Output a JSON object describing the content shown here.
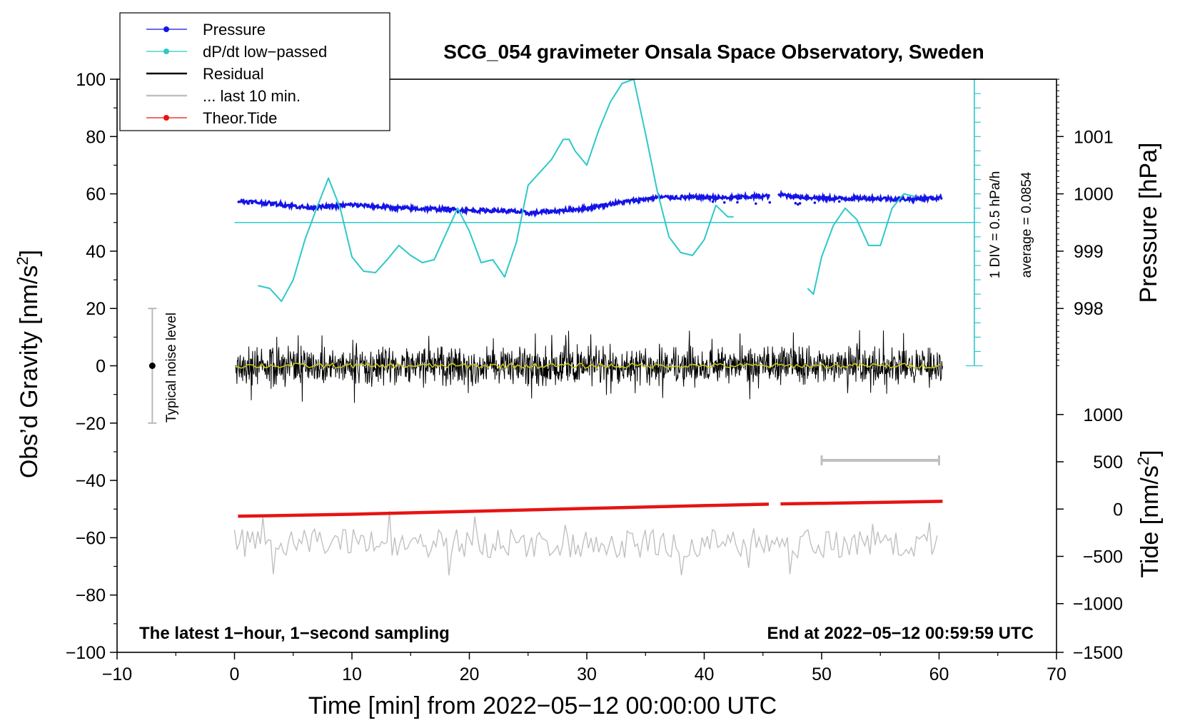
{
  "chart_data": {
    "type": "line",
    "title": "SCG_054 gravimeter Onsala Space Observatory, Sweden",
    "xlabel": "Time [min] from 2022−05−12 00:00:00 UTC",
    "ylabel": "Obs’d Gravity [nm/s²]",
    "ylabel_parts": {
      "main": "Obs’d Gravity [nm/s",
      "sup": "2",
      "tail": "]"
    },
    "xlim": [
      -10,
      70
    ],
    "ylim": [
      -100,
      100
    ],
    "x_ticks": [
      {
        "value": -10,
        "label": "−10"
      },
      {
        "value": 0,
        "label": "0"
      },
      {
        "value": 10,
        "label": "10"
      },
      {
        "value": 20,
        "label": "20"
      },
      {
        "value": 30,
        "label": "30"
      },
      {
        "value": 40,
        "label": "40"
      },
      {
        "value": 50,
        "label": "50"
      },
      {
        "value": 60,
        "label": "60"
      },
      {
        "value": 70,
        "label": "70"
      }
    ],
    "y_ticks": [
      {
        "value": 100,
        "label": "100"
      },
      {
        "value": 80,
        "label": "80"
      },
      {
        "value": 60,
        "label": "60"
      },
      {
        "value": 40,
        "label": "40"
      },
      {
        "value": 20,
        "label": "20"
      },
      {
        "value": 0,
        "label": "0"
      },
      {
        "value": -20,
        "label": "−20"
      },
      {
        "value": -40,
        "label": "−40"
      },
      {
        "value": -60,
        "label": "−60"
      },
      {
        "value": -80,
        "label": "−80"
      },
      {
        "value": -100,
        "label": "−100"
      }
    ],
    "pressure_axis": {
      "label": "Pressure [hPa]",
      "ticks": [
        {
          "value": 1001,
          "gravity": 80,
          "label": "1001"
        },
        {
          "value": 1000,
          "gravity": 60,
          "label": "1000"
        },
        {
          "value": 999,
          "gravity": 40,
          "label": "999"
        },
        {
          "value": 998,
          "gravity": 20,
          "label": "998"
        }
      ]
    },
    "tide_axis": {
      "label_parts": {
        "main": "Tide [nm/s",
        "sup": "2",
        "tail": "]"
      },
      "ticks": [
        {
          "value": 1000,
          "gravity": -17,
          "label": "1000"
        },
        {
          "value": 500,
          "gravity": -33.5,
          "label": "500"
        },
        {
          "value": 0,
          "gravity": -50,
          "label": "0"
        },
        {
          "value": -500,
          "gravity": -66.5,
          "label": "−500"
        },
        {
          "value": -1000,
          "gravity": -83,
          "label": "−1000"
        },
        {
          "value": -1500,
          "gravity": -100,
          "label": "−1500"
        }
      ]
    },
    "legend": {
      "placement": "top-left",
      "items": [
        {
          "label": "Pressure",
          "color": "#1414e6",
          "marker": true
        },
        {
          "label": "dP/dt low−passed",
          "color": "#2ec8c8",
          "marker": true
        },
        {
          "label": "Residual",
          "color": "#000000",
          "marker": false
        },
        {
          "label": "... last 10 min.",
          "color": "#c0c0c0",
          "marker": false
        },
        {
          "label": "Theor.Tide",
          "color": "#e61414",
          "marker": true
        }
      ]
    },
    "annotations": {
      "bottom_left": "The latest 1−hour, 1−second sampling",
      "bottom_right": "End at 2022−05−12 00:59:59 UTC",
      "noise_label": "Typical noise level",
      "dpdt_scale": "1 DIV = 0.5 hPa/h",
      "dpdt_average": "average = 0.0854"
    },
    "noise_bar": {
      "x": -7,
      "y_low": -20,
      "y_high": 20,
      "center": 0
    },
    "dpdt_scale_axis": {
      "x": 63,
      "y_low": 0,
      "y_high": 100,
      "div_step": 5,
      "baseline": 50,
      "baseline_x": [
        0,
        63
      ]
    },
    "last10_bar": {
      "x_start": 50,
      "x_end": 60,
      "y": -33
    },
    "series": [
      {
        "name": "Pressure",
        "color": "#1414e6",
        "gaps": [
          [
            45.6,
            46.3
          ]
        ],
        "x": [
          0.3,
          2,
          4,
          6,
          8,
          10,
          12,
          14,
          16,
          18,
          20,
          22,
          24,
          25,
          26,
          28,
          30,
          32,
          34,
          36,
          38,
          40,
          42,
          44,
          45.5,
          46.5,
          48,
          50,
          52,
          54,
          56,
          58,
          60.3
        ],
        "values": [
          57.5,
          57,
          56.3,
          55.3,
          55.5,
          56.2,
          55.6,
          55,
          54.8,
          54.6,
          54.2,
          54.2,
          53.8,
          53.2,
          53.6,
          54.2,
          55,
          56.5,
          57.6,
          58.8,
          58.8,
          58.8,
          58.6,
          59,
          59.2,
          59.7,
          59,
          58.5,
          58.4,
          58.5,
          58.3,
          58.2,
          58.7
        ]
      },
      {
        "name": "dP/dt low−passed",
        "color": "#2ec8c8",
        "gaps": [
          [
            42.5,
            48.8
          ]
        ],
        "x": [
          2,
          3,
          4,
          5,
          6,
          7,
          8,
          9,
          10,
          11,
          12,
          13,
          14,
          15,
          16,
          17,
          18,
          19,
          20,
          21,
          22,
          23,
          24,
          25,
          26,
          27,
          28,
          28.5,
          29,
          30,
          31,
          32,
          33,
          34,
          35,
          36,
          37,
          38,
          39,
          40,
          41,
          42,
          42.5,
          48.8,
          49.3,
          50,
          51,
          52,
          53,
          54,
          55,
          56,
          57,
          58
        ],
        "values": [
          28,
          27,
          22.5,
          30,
          44,
          55,
          65.5,
          55,
          38,
          33,
          32.5,
          37,
          42,
          38.5,
          36,
          37,
          46,
          55,
          47,
          36,
          37,
          31,
          43,
          63,
          67.5,
          72,
          79,
          79,
          75,
          70,
          82,
          92,
          98.5,
          100,
          81,
          61,
          45,
          39.5,
          38.5,
          44,
          56,
          52,
          52,
          27,
          25,
          38,
          49,
          55,
          51,
          42,
          42,
          55,
          60,
          59
        ]
      },
      {
        "name": "Residual",
        "color": "#000000",
        "x_range": [
          0.1,
          60.3
        ],
        "gaps": [
          [
            45.6,
            46.3
          ]
        ],
        "amplitude_typical": 8,
        "amplitude_max": 13,
        "mean": 0
      },
      {
        "name": "Residual low-passed",
        "color": "#c8c814",
        "x_range": [
          0.1,
          60.3
        ],
        "gaps": [
          [
            45.6,
            46.3
          ]
        ],
        "mean": 0
      },
      {
        "name": "... last 10 min.",
        "color": "#c0c0c0",
        "x_range": [
          0,
          60
        ],
        "gaps": [
          [
            45.6,
            46.3
          ]
        ],
        "center": -62,
        "amplitude_max": 12
      },
      {
        "name": "Theor.Tide",
        "color": "#e61414",
        "gaps": [
          [
            45.6,
            46.3
          ]
        ],
        "x": [
          0.3,
          10,
          20,
          30,
          40,
          45.5,
          46.5,
          50,
          60.3
        ],
        "values": [
          -52.5,
          -51.8,
          -50.8,
          -49.8,
          -48.8,
          -48.3,
          -48.2,
          -48,
          -47.3
        ]
      }
    ]
  }
}
